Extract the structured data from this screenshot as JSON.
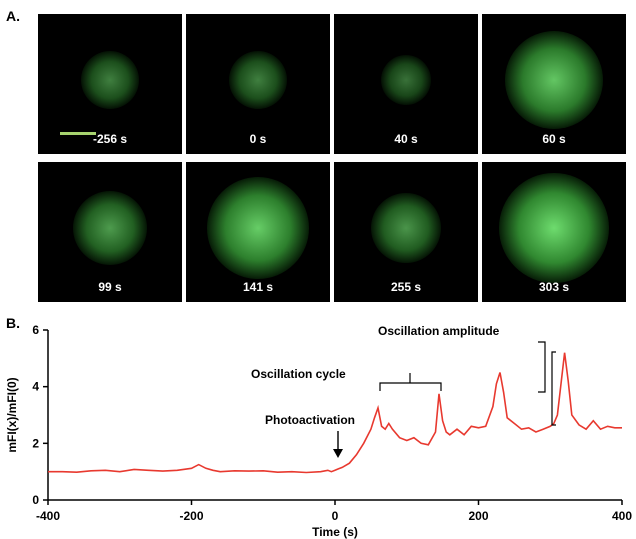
{
  "panel_a": {
    "letter": "A.",
    "frames": [
      {
        "time": "-256 s",
        "intensity": 0.35
      },
      {
        "time": "0 s",
        "intensity": 0.35
      },
      {
        "time": "40 s",
        "intensity": 0.25
      },
      {
        "time": "60 s",
        "intensity": 0.85
      },
      {
        "time": "99 s",
        "intensity": 0.55
      },
      {
        "time": "141 s",
        "intensity": 0.9
      },
      {
        "time": "255 s",
        "intensity": 0.5
      },
      {
        "time": "303 s",
        "intensity": 1.0
      }
    ]
  },
  "panel_b": {
    "letter": "B.",
    "annotations": {
      "photoactivation": "Photoactivation",
      "cycle": "Oscillation cycle",
      "amplitude": "Oscillation amplitude"
    }
  },
  "chart_data": {
    "type": "line",
    "xlabel": "Time (s)",
    "ylabel": "mFI(x)/mFI(0)",
    "xlim": [
      -400,
      400
    ],
    "ylim": [
      0,
      6
    ],
    "xticks": [
      -400,
      -200,
      0,
      200,
      400
    ],
    "yticks": [
      0,
      2,
      4,
      6
    ],
    "grid": false,
    "series": [
      {
        "color": "#e8392f",
        "x": [
          -400,
          -380,
          -360,
          -340,
          -320,
          -300,
          -280,
          -260,
          -240,
          -220,
          -200,
          -190,
          -180,
          -170,
          -160,
          -140,
          -120,
          -100,
          -80,
          -60,
          -40,
          -20,
          -10,
          -5,
          0,
          5,
          10,
          20,
          30,
          40,
          50,
          55,
          60,
          65,
          70,
          75,
          80,
          90,
          100,
          110,
          120,
          130,
          140,
          145,
          150,
          155,
          160,
          170,
          180,
          190,
          200,
          210,
          220,
          225,
          230,
          235,
          240,
          250,
          260,
          270,
          280,
          290,
          300,
          305,
          310,
          315,
          320,
          325,
          330,
          340,
          350,
          360,
          370,
          380,
          390,
          400
        ],
        "values": [
          1.0,
          1.0,
          0.98,
          1.03,
          1.05,
          1.0,
          1.08,
          1.05,
          1.02,
          1.05,
          1.12,
          1.25,
          1.12,
          1.05,
          1.0,
          1.03,
          1.02,
          1.03,
          0.98,
          1.0,
          0.97,
          1.0,
          1.05,
          1.0,
          1.05,
          1.1,
          1.15,
          1.3,
          1.6,
          2.0,
          2.5,
          2.9,
          3.25,
          2.6,
          2.5,
          2.7,
          2.5,
          2.2,
          2.1,
          2.2,
          2.0,
          1.95,
          2.4,
          3.75,
          2.8,
          2.4,
          2.3,
          2.5,
          2.3,
          2.6,
          2.55,
          2.6,
          3.3,
          4.1,
          4.5,
          3.8,
          2.9,
          2.7,
          2.5,
          2.55,
          2.4,
          2.5,
          2.6,
          2.7,
          3.0,
          4.1,
          5.2,
          4.2,
          3.0,
          2.65,
          2.5,
          2.8,
          2.5,
          2.6,
          2.55,
          2.55
        ]
      }
    ]
  }
}
